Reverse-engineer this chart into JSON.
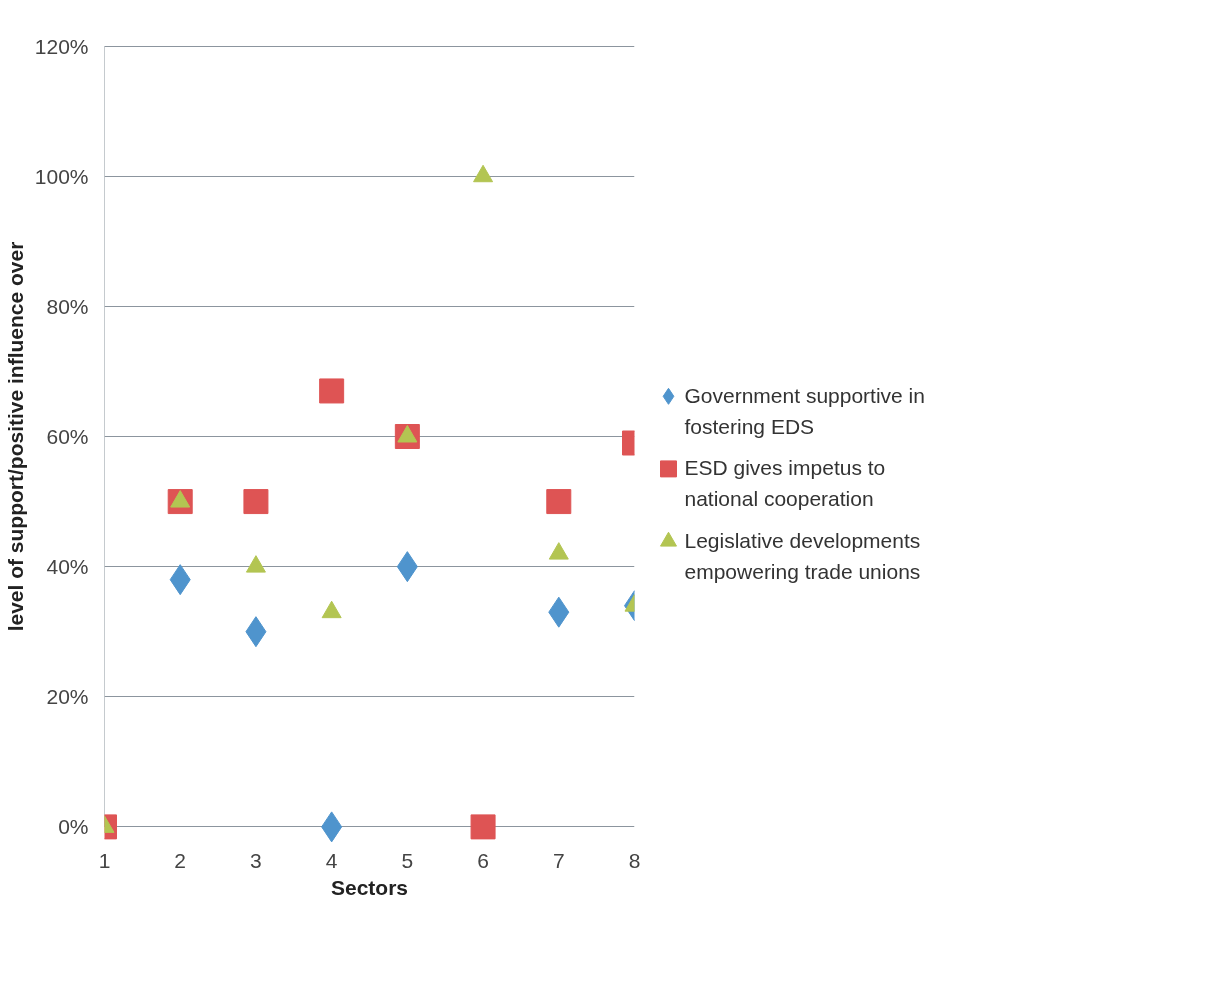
{
  "chart_data": {
    "type": "scatter",
    "xlabel": "Sectors",
    "ylabel": "level of support/positive influence over",
    "x": [
      1,
      2,
      3,
      4,
      5,
      6,
      7,
      8
    ],
    "xlim": [
      1,
      8
    ],
    "xticks": [
      1,
      2,
      3,
      4,
      5,
      6,
      7,
      8
    ],
    "ylim": [
      0,
      120
    ],
    "yticks": [
      {
        "value": 0,
        "label": "0%"
      },
      {
        "value": 20,
        "label": "20%"
      },
      {
        "value": 40,
        "label": "40%"
      },
      {
        "value": 60,
        "label": "60%"
      },
      {
        "value": 80,
        "label": "80%"
      },
      {
        "value": 100,
        "label": "100%"
      },
      {
        "value": 120,
        "label": "120%"
      }
    ],
    "grid": "y",
    "legend": "right",
    "series": [
      {
        "name": "Government supportive in fostering EDS",
        "color": "#4f94cd",
        "marker": "diamond",
        "values": [
          null,
          38,
          30,
          0,
          40,
          null,
          33,
          34
        ]
      },
      {
        "name": "ESD gives impetus to national cooperation",
        "color": "#de5454",
        "marker": "square",
        "values": [
          0,
          50,
          50,
          67,
          60,
          0,
          50,
          59
        ]
      },
      {
        "name": "Legislative developments empowering trade unions",
        "color": "#b3c552",
        "marker": "triangle",
        "values": [
          0,
          50,
          40,
          33,
          60,
          100,
          42,
          34
        ]
      }
    ]
  }
}
